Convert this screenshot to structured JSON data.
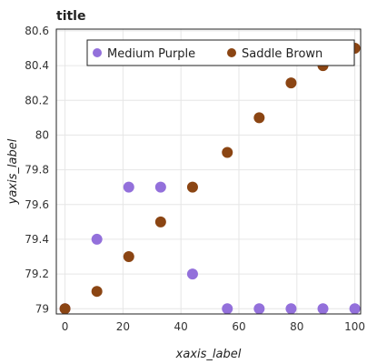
{
  "chart_data": {
    "type": "scatter",
    "title": "title",
    "xlabel": "xaxis_label",
    "ylabel": "yaxis_label",
    "xlim": [
      -3,
      102
    ],
    "ylim": [
      78.97,
      80.61
    ],
    "xticks": [
      0,
      20,
      40,
      60,
      80,
      100
    ],
    "yticks": [
      79.0,
      79.2,
      79.4,
      79.6,
      79.8,
      80.0,
      80.2,
      80.4,
      80.6
    ],
    "grid": true,
    "legend_position": "top",
    "series": [
      {
        "name": "Medium Purple",
        "color": "#9370DB",
        "x": [
          0,
          11,
          22,
          33,
          44,
          56,
          67,
          78,
          89,
          100
        ],
        "y": [
          79.0,
          79.4,
          79.7,
          79.7,
          79.2,
          79.0,
          79.0,
          79.0,
          79.0,
          79.0
        ]
      },
      {
        "name": "Saddle Brown",
        "color": "#8B4513",
        "x": [
          0,
          11,
          22,
          33,
          44,
          56,
          67,
          78,
          89,
          100
        ],
        "y": [
          79.0,
          79.1,
          79.3,
          79.5,
          79.7,
          79.9,
          80.1,
          80.3,
          80.4,
          80.5
        ]
      }
    ]
  }
}
